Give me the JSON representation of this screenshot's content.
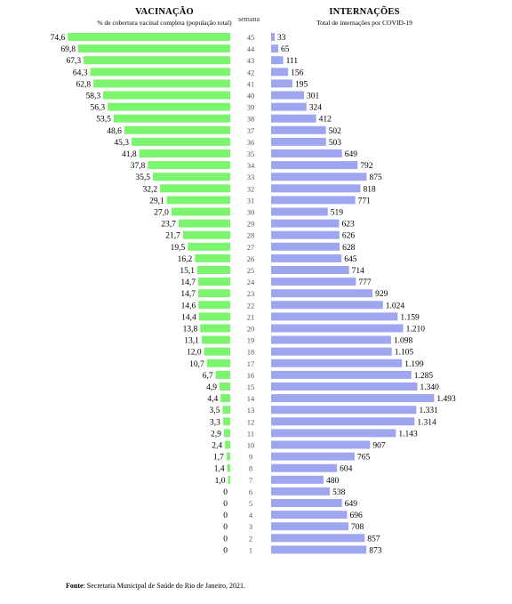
{
  "header": {
    "left_title": "VACINAÇÃO",
    "left_subtitle": "% de cobertura vacinal completa (população total)",
    "center_label": "semana",
    "right_title": "INTERNAÇÕES",
    "right_subtitle": "Total de internações  por COVID-19"
  },
  "source": {
    "label": "Fonte",
    "text": ": Secretaria Municipal de Saúde do Rio de Janeiro, 2021."
  },
  "colors": {
    "vaccination_bar": "#7CF56E",
    "hospitalization_bar": "#9EA6F0",
    "week_label": "#555555"
  },
  "chart_data": {
    "type": "bar",
    "layout": "butterfly",
    "categories": [
      45,
      44,
      43,
      42,
      41,
      40,
      39,
      38,
      37,
      36,
      35,
      34,
      33,
      32,
      31,
      30,
      29,
      28,
      27,
      26,
      25,
      24,
      23,
      22,
      21,
      20,
      19,
      18,
      17,
      16,
      15,
      14,
      13,
      12,
      11,
      10,
      9,
      8,
      7,
      6,
      5,
      4,
      3,
      2,
      1
    ],
    "series": [
      {
        "name": "VACINAÇÃO",
        "values": [
          74.6,
          69.8,
          67.3,
          64.3,
          62.8,
          58.3,
          56.3,
          53.5,
          48.6,
          45.3,
          41.8,
          37.8,
          35.5,
          32.2,
          29.1,
          27.0,
          23.7,
          21.7,
          19.5,
          16.2,
          15.1,
          14.7,
          14.7,
          14.6,
          14.4,
          13.8,
          13.1,
          12.0,
          10.7,
          6.7,
          4.9,
          4.4,
          3.5,
          3.3,
          2.9,
          2.4,
          1.7,
          1.4,
          1.0,
          0,
          0,
          0,
          0,
          0,
          0
        ],
        "labels": [
          "74,6",
          "69,8",
          "67,3",
          "64,3",
          "62,8",
          "58,3",
          "56,3",
          "53,5",
          "48,6",
          "45,3",
          "41,8",
          "37,8",
          "35,5",
          "32,2",
          "29,1",
          "27,0",
          "23,7",
          "21,7",
          "19,5",
          "16,2",
          "15,1",
          "14,7",
          "14,7",
          "14,6",
          "14,4",
          "13,8",
          "13,1",
          "12,0",
          "10,7",
          "6,7",
          "4,9",
          "4,4",
          "3,5",
          "3,3",
          "2,9",
          "2,4",
          "1,7",
          "1,4",
          "1,0",
          "0",
          "0",
          "0",
          "0",
          "0",
          "0"
        ]
      },
      {
        "name": "INTERNAÇÕES",
        "values": [
          33,
          65,
          111,
          156,
          195,
          301,
          324,
          412,
          502,
          503,
          649,
          792,
          875,
          818,
          771,
          519,
          623,
          626,
          628,
          645,
          714,
          777,
          929,
          1024,
          1159,
          1210,
          1098,
          1105,
          1199,
          1285,
          1340,
          1493,
          1331,
          1314,
          1143,
          907,
          765,
          604,
          480,
          538,
          649,
          696,
          708,
          857,
          873
        ],
        "labels": [
          "33",
          "65",
          "111",
          "156",
          "195",
          "301",
          "324",
          "412",
          "502",
          "503",
          "649",
          "792",
          "875",
          "818",
          "771",
          "519",
          "623",
          "626",
          "628",
          "645",
          "714",
          "777",
          "929",
          "1.024",
          "1.159",
          "1.210",
          "1.098",
          "1.105",
          "1.199",
          "1.285",
          "1.340",
          "1.493",
          "1.331",
          "1.314",
          "1.143",
          "907",
          "765",
          "604",
          "480",
          "538",
          "649",
          "696",
          "708",
          "857",
          "873"
        ]
      }
    ]
  }
}
